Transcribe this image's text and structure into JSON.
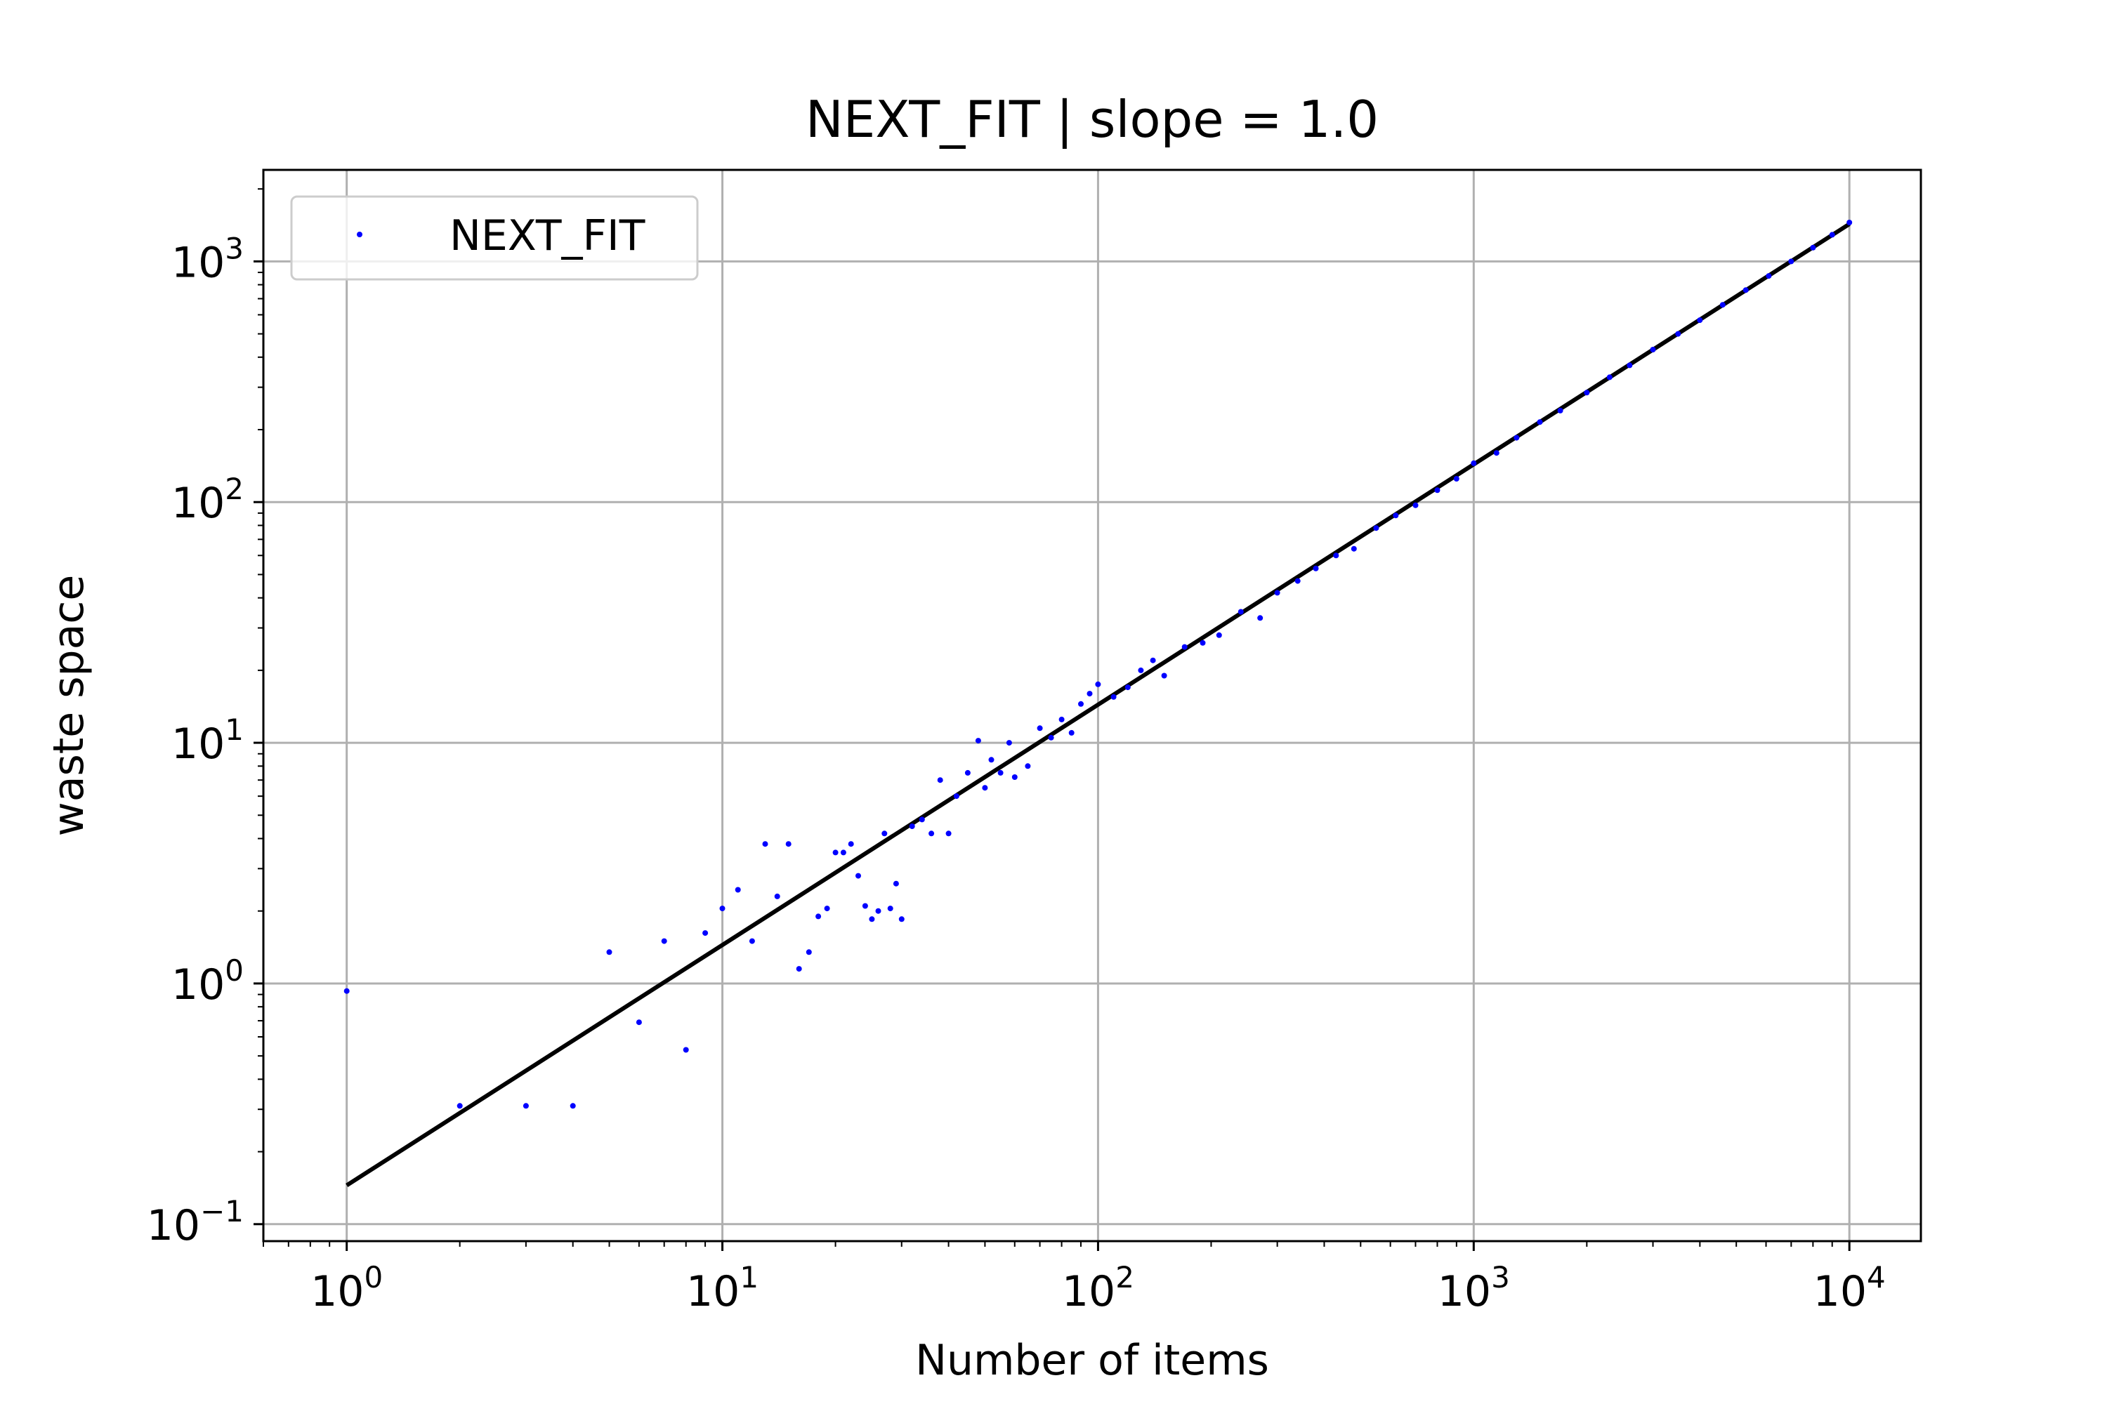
{
  "chart_data": {
    "type": "scatter",
    "title": "NEXT_FIT | slope = 1.0",
    "xlabel": "Number of items",
    "ylabel": "waste space",
    "xscale": "log",
    "yscale": "log",
    "xlim": [
      0.6,
      15500
    ],
    "ylim": [
      0.085,
      2400
    ],
    "grid": true,
    "legend": {
      "position": "top-left",
      "entries": [
        {
          "label": "NEXT_FIT",
          "color": "#0000ff"
        }
      ]
    },
    "x_ticks": [
      {
        "value": 1,
        "base": "10",
        "exp": "0"
      },
      {
        "value": 10,
        "base": "10",
        "exp": "1"
      },
      {
        "value": 100,
        "base": "10",
        "exp": "2"
      },
      {
        "value": 1000,
        "base": "10",
        "exp": "3"
      },
      {
        "value": 10000,
        "base": "10",
        "exp": "4"
      }
    ],
    "y_ticks": [
      {
        "value": 0.1,
        "base": "10",
        "exp": "−1"
      },
      {
        "value": 1,
        "base": "10",
        "exp": "0"
      },
      {
        "value": 10,
        "base": "10",
        "exp": "1"
      },
      {
        "value": 100,
        "base": "10",
        "exp": "2"
      },
      {
        "value": 1000,
        "base": "10",
        "exp": "3"
      }
    ],
    "series": [
      {
        "name": "NEXT_FIT",
        "kind": "scatter",
        "color": "#0000ff",
        "points": [
          [
            1,
            0.93
          ],
          [
            2,
            0.31
          ],
          [
            3,
            0.31
          ],
          [
            4,
            0.31
          ],
          [
            5,
            1.35
          ],
          [
            6,
            0.69
          ],
          [
            7,
            1.5
          ],
          [
            8,
            0.53
          ],
          [
            9,
            1.62
          ],
          [
            10,
            2.05
          ],
          [
            11,
            2.45
          ],
          [
            12,
            1.5
          ],
          [
            13,
            3.8
          ],
          [
            14,
            2.3
          ],
          [
            15,
            3.8
          ],
          [
            16,
            1.15
          ],
          [
            17,
            1.35
          ],
          [
            18,
            1.9
          ],
          [
            19,
            2.05
          ],
          [
            20,
            3.5
          ],
          [
            21,
            3.5
          ],
          [
            22,
            3.8
          ],
          [
            23,
            2.8
          ],
          [
            24,
            2.1
          ],
          [
            25,
            1.85
          ],
          [
            26,
            2.0
          ],
          [
            27,
            4.2
          ],
          [
            28,
            2.05
          ],
          [
            29,
            2.6
          ],
          [
            30,
            1.85
          ],
          [
            32,
            4.5
          ],
          [
            34,
            4.8
          ],
          [
            36,
            4.2
          ],
          [
            38,
            7.0
          ],
          [
            40,
            4.2
          ],
          [
            42,
            6.0
          ],
          [
            45,
            7.5
          ],
          [
            48,
            10.2
          ],
          [
            50,
            6.5
          ],
          [
            52,
            8.5
          ],
          [
            55,
            7.5
          ],
          [
            58,
            10.0
          ],
          [
            60,
            7.2
          ],
          [
            65,
            8.0
          ],
          [
            70,
            11.5
          ],
          [
            75,
            10.5
          ],
          [
            80,
            12.5
          ],
          [
            85,
            11.0
          ],
          [
            90,
            14.5
          ],
          [
            95,
            16.0
          ],
          [
            100,
            17.5
          ],
          [
            110,
            15.5
          ],
          [
            120,
            17.0
          ],
          [
            130,
            20.0
          ],
          [
            140,
            22.0
          ],
          [
            150,
            19.0
          ],
          [
            170,
            25.0
          ],
          [
            190,
            26.0
          ],
          [
            210,
            28.0
          ],
          [
            240,
            35.0
          ],
          [
            270,
            33.0
          ],
          [
            300,
            42.0
          ],
          [
            340,
            47.0
          ],
          [
            380,
            53.0
          ],
          [
            430,
            60.0
          ],
          [
            480,
            64.0
          ],
          [
            550,
            78.0
          ],
          [
            620,
            88.0
          ],
          [
            700,
            97.0
          ],
          [
            800,
            112.0
          ],
          [
            900,
            125.0
          ],
          [
            1000,
            145.0
          ],
          [
            1150,
            160.0
          ],
          [
            1300,
            185.0
          ],
          [
            1500,
            215.0
          ],
          [
            1700,
            240.0
          ],
          [
            2000,
            285.0
          ],
          [
            2300,
            330.0
          ],
          [
            2600,
            370.0
          ],
          [
            3000,
            430.0
          ],
          [
            3500,
            500.0
          ],
          [
            4000,
            570.0
          ],
          [
            4600,
            660.0
          ],
          [
            5300,
            760.0
          ],
          [
            6100,
            870.0
          ],
          [
            7000,
            1000.0
          ],
          [
            8000,
            1140.0
          ],
          [
            9000,
            1290.0
          ],
          [
            10000,
            1450.0
          ]
        ]
      },
      {
        "name": "fit",
        "kind": "line",
        "color": "#000000",
        "points": [
          [
            1,
            0.145
          ],
          [
            10000,
            1430.0
          ]
        ]
      }
    ]
  }
}
